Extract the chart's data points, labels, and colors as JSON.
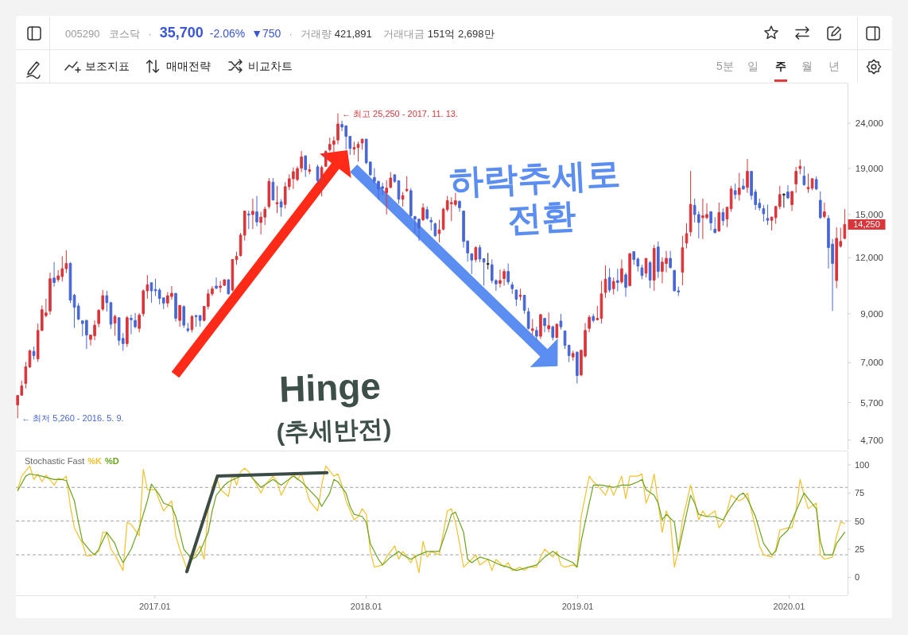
{
  "chart_data": [
    {
      "type": "other",
      "annotations": [
        "005290",
        "코스닥",
        "·",
        "35,700",
        "-2.06%",
        "▼750",
        "·",
        "거래량",
        "421,891",
        "거래대금",
        "151억 2,698만",
        "보조지표",
        "매매전략",
        "비교차트",
        "5분",
        "일",
        "주",
        "월",
        "년"
      ]
    },
    {
      "type": "candlestick",
      "x": [
        "2016-05-09",
        "2016-05-16",
        "2016-05-23",
        "2016-05-30",
        "2016-06-06",
        "2016-06-13",
        "2016-06-20",
        "2016-06-27",
        "2016-07-04",
        "2016-07-11",
        "2016-07-18",
        "2016-07-25",
        "2016-08-01",
        "2016-08-08",
        "2016-08-15",
        "2016-08-22",
        "2016-08-29",
        "2016-09-05",
        "2016-09-12",
        "2016-09-19",
        "2016-09-26",
        "2016-10-03",
        "2016-10-10",
        "2016-10-17",
        "2016-10-24",
        "2016-10-31",
        "2016-11-07",
        "2016-11-14",
        "2016-11-21",
        "2016-11-28",
        "2016-12-05",
        "2016-12-12",
        "2016-12-19",
        "2016-12-26",
        "2017-01-02",
        "2017-01-09",
        "2017-01-16",
        "2017-01-23",
        "2017-01-30",
        "2017-02-06",
        "2017-02-13",
        "2017-02-20",
        "2017-02-27",
        "2017-03-06",
        "2017-03-13",
        "2017-03-20",
        "2017-03-27",
        "2017-04-03",
        "2017-04-10",
        "2017-04-17",
        "2017-04-24",
        "2017-05-01",
        "2017-05-08",
        "2017-05-15",
        "2017-05-22",
        "2017-05-29",
        "2017-06-05",
        "2017-06-12",
        "2017-06-19",
        "2017-06-26",
        "2017-07-03",
        "2017-07-10",
        "2017-07-17",
        "2017-07-24",
        "2017-07-31",
        "2017-08-07",
        "2017-08-14",
        "2017-08-21",
        "2017-08-28",
        "2017-09-04",
        "2017-09-11",
        "2017-09-18",
        "2017-09-25",
        "2017-10-09",
        "2017-10-16",
        "2017-10-23",
        "2017-10-30",
        "2017-11-06",
        "2017-11-13",
        "2017-11-20",
        "2017-11-27",
        "2017-12-04",
        "2017-12-11",
        "2017-12-18",
        "2017-12-25",
        "2018-01-01",
        "2018-01-08",
        "2018-01-15",
        "2018-01-22",
        "2018-01-29",
        "2018-02-05",
        "2018-02-12",
        "2018-02-19",
        "2018-02-26",
        "2018-03-05",
        "2018-03-12",
        "2018-03-19",
        "2018-03-26",
        "2018-04-02",
        "2018-04-09",
        "2018-04-16",
        "2018-04-23",
        "2018-04-30",
        "2018-05-07",
        "2018-05-14",
        "2018-05-21",
        "2018-05-28",
        "2018-06-04",
        "2018-06-11",
        "2018-06-18",
        "2018-06-25",
        "2018-07-02",
        "2018-07-09",
        "2018-07-16",
        "2018-07-23",
        "2018-07-30",
        "2018-08-06",
        "2018-08-13",
        "2018-08-20",
        "2018-08-27",
        "2018-09-03",
        "2018-09-10",
        "2018-09-17",
        "2018-09-24",
        "2018-10-01",
        "2018-10-08",
        "2018-10-15",
        "2018-10-22",
        "2018-10-29",
        "2018-11-05",
        "2018-11-12",
        "2018-11-19",
        "2018-11-26",
        "2018-12-03",
        "2018-12-10",
        "2018-12-17",
        "2018-12-24",
        "2018-12-31",
        "2019-01-07",
        "2019-01-14",
        "2019-01-21",
        "2019-01-28",
        "2019-02-04",
        "2019-02-11",
        "2019-02-18",
        "2019-02-25",
        "2019-03-04",
        "2019-03-11",
        "2019-03-18",
        "2019-03-25",
        "2019-04-01",
        "2019-04-08",
        "2019-04-15",
        "2019-04-22",
        "2019-04-29",
        "2019-05-06",
        "2019-05-13",
        "2019-05-20",
        "2019-05-27",
        "2019-06-03",
        "2019-06-10",
        "2019-06-17",
        "2019-06-24",
        "2019-07-01",
        "2019-07-08",
        "2019-07-15",
        "2019-07-22",
        "2019-07-29",
        "2019-08-05",
        "2019-08-12",
        "2019-08-19",
        "2019-08-26",
        "2019-09-02",
        "2019-09-09",
        "2019-09-16",
        "2019-09-23",
        "2019-09-30",
        "2019-10-07",
        "2019-10-14",
        "2019-10-21",
        "2019-10-28",
        "2019-11-04",
        "2019-11-11",
        "2019-11-18",
        "2019-11-25",
        "2019-12-02",
        "2019-12-09",
        "2019-12-16",
        "2019-12-23",
        "2019-12-30",
        "2020-01-06",
        "2020-01-13",
        "2020-01-20",
        "2020-01-27",
        "2020-02-03",
        "2020-02-10",
        "2020-02-17",
        "2020-02-24",
        "2020-03-02",
        "2020-03-09",
        "2020-03-16",
        "2020-03-23",
        "2020-03-30",
        "2020-04-06"
      ],
      "ohlc": [
        [
          5630,
          5920,
          5260,
          5910
        ],
        [
          5920,
          6380,
          5910,
          6210
        ],
        [
          6290,
          7030,
          6130,
          6850
        ],
        [
          6850,
          7490,
          6810,
          7440
        ],
        [
          7420,
          7610,
          7110,
          7260
        ],
        [
          7140,
          8560,
          7030,
          8260
        ],
        [
          8260,
          9400,
          8240,
          9190
        ],
        [
          8920,
          9730,
          8840,
          9040
        ],
        [
          9130,
          11120,
          8960,
          10780
        ],
        [
          10820,
          11740,
          10350,
          10570
        ],
        [
          10730,
          11270,
          10600,
          10940
        ],
        [
          10900,
          12110,
          10630,
          11350
        ],
        [
          11350,
          12480,
          11100,
          11660
        ],
        [
          11660,
          11740,
          9510,
          9660
        ],
        [
          9900,
          9970,
          8370,
          9310
        ],
        [
          9370,
          9510,
          8700,
          8760
        ],
        [
          8680,
          8680,
          8020,
          8560
        ],
        [
          8700,
          8720,
          7510,
          8070
        ],
        [
          7890,
          8070,
          7650,
          8070
        ],
        [
          8040,
          8700,
          7860,
          8490
        ],
        [
          8560,
          9220,
          8400,
          9160
        ],
        [
          9220,
          10170,
          9130,
          9880
        ],
        [
          9880,
          10130,
          9100,
          9530
        ],
        [
          9530,
          9570,
          8330,
          8530
        ],
        [
          8580,
          8960,
          8040,
          8880
        ],
        [
          8820,
          8820,
          7650,
          7850
        ],
        [
          7930,
          8150,
          7440,
          7720
        ],
        [
          7720,
          8900,
          7590,
          8820
        ],
        [
          8790,
          8960,
          8100,
          8730
        ],
        [
          8700,
          9040,
          8350,
          8420
        ],
        [
          8350,
          9040,
          8180,
          8940
        ],
        [
          9000,
          10200,
          8880,
          10130
        ],
        [
          10130,
          10990,
          9730,
          10450
        ],
        [
          10560,
          10560,
          9530,
          10130
        ],
        [
          10200,
          10780,
          9860,
          10130
        ],
        [
          10170,
          10270,
          9450,
          9740
        ],
        [
          9770,
          9770,
          9220,
          9510
        ],
        [
          9510,
          10070,
          9310,
          9880
        ],
        [
          9840,
          10380,
          9680,
          10000
        ],
        [
          10000,
          10000,
          8650,
          8790
        ],
        [
          8700,
          9400,
          8420,
          9400
        ],
        [
          9340,
          9400,
          8370,
          8490
        ],
        [
          8330,
          8590,
          8180,
          8260
        ],
        [
          8300,
          8940,
          8180,
          8880
        ],
        [
          8920,
          8940,
          8420,
          8870
        ],
        [
          8920,
          8940,
          8420,
          8700
        ],
        [
          8700,
          9370,
          8650,
          9350
        ],
        [
          9350,
          10200,
          9220,
          9970
        ],
        [
          9970,
          10380,
          9860,
          10240
        ],
        [
          10380,
          10850,
          10210,
          10270
        ],
        [
          10300,
          10660,
          10040,
          10380
        ],
        [
          10420,
          10750,
          10380,
          10720
        ],
        [
          10720,
          10750,
          9940,
          9970
        ],
        [
          10170,
          11930,
          10100,
          11900
        ],
        [
          11900,
          12390,
          11580,
          12090
        ],
        [
          12150,
          13640,
          12070,
          13490
        ],
        [
          13490,
          15300,
          13120,
          15270
        ],
        [
          15040,
          15300,
          13910,
          14960
        ],
        [
          15000,
          16280,
          13910,
          15250
        ],
        [
          15210,
          16500,
          14120,
          14440
        ],
        [
          14400,
          15210,
          13540,
          14800
        ],
        [
          14800,
          15630,
          14210,
          15420
        ],
        [
          15630,
          18100,
          15460,
          17790
        ],
        [
          17710,
          18100,
          16110,
          16170
        ],
        [
          15850,
          17380,
          15100,
          15950
        ],
        [
          16010,
          16230,
          14840,
          15590
        ],
        [
          15800,
          17710,
          15460,
          17310
        ],
        [
          17310,
          18450,
          17010,
          18030
        ],
        [
          18030,
          19110,
          17110,
          18700
        ],
        [
          17960,
          19220,
          17790,
          19000
        ],
        [
          19040,
          20800,
          18640,
          20180
        ],
        [
          20290,
          20290,
          18200,
          18890
        ],
        [
          18730,
          19430,
          18450,
          18890
        ],
        [
          19170,
          19380,
          17620,
          17850
        ],
        [
          17850,
          19300,
          16460,
          19100
        ],
        [
          19230,
          20860,
          19170,
          20740
        ],
        [
          20940,
          22270,
          20740,
          21520
        ],
        [
          21520,
          22420,
          20650,
          21910
        ],
        [
          22010,
          25250,
          21520,
          23900
        ],
        [
          23840,
          24320,
          23040,
          23520
        ],
        [
          23680,
          23680,
          20960,
          22420
        ],
        [
          22420,
          22420,
          20380,
          21080
        ],
        [
          21000,
          21820,
          20380,
          21170
        ],
        [
          21170,
          21820,
          19700,
          21520
        ],
        [
          21670,
          22110,
          20940,
          22110
        ],
        [
          22110,
          22110,
          19440,
          19570
        ],
        [
          19650,
          19700,
          18280,
          18400
        ],
        [
          18150,
          19040,
          17590,
          17790
        ],
        [
          17790,
          17850,
          16170,
          17100
        ],
        [
          17310,
          17660,
          16560,
          17150
        ],
        [
          16770,
          17900,
          15000,
          17180
        ],
        [
          17240,
          18650,
          17180,
          18100
        ],
        [
          18400,
          18450,
          17660,
          17790
        ],
        [
          17850,
          17850,
          15850,
          16230
        ],
        [
          16230,
          16840,
          15630,
          16540
        ],
        [
          16960,
          18280,
          16840,
          17080
        ],
        [
          16960,
          17180,
          14800,
          14900
        ],
        [
          14840,
          14900,
          13630,
          14640
        ],
        [
          14640,
          14700,
          13090,
          14010
        ],
        [
          14600,
          15890,
          14500,
          15530
        ],
        [
          15380,
          15630,
          14600,
          14700
        ],
        [
          14560,
          14800,
          13820,
          14440
        ],
        [
          14300,
          14400,
          13360,
          13450
        ],
        [
          13600,
          14600,
          13000,
          13860
        ],
        [
          13910,
          15530,
          13820,
          15420
        ],
        [
          15380,
          16500,
          15210,
          16110
        ],
        [
          15850,
          16390,
          14500,
          15950
        ],
        [
          15800,
          16770,
          15630,
          16110
        ],
        [
          16060,
          16110,
          15210,
          15530
        ],
        [
          15270,
          15270,
          12650,
          13060
        ],
        [
          13090,
          13120,
          11770,
          12310
        ],
        [
          12260,
          12260,
          11040,
          11870
        ],
        [
          11900,
          12740,
          11740,
          12650
        ],
        [
          12650,
          12830,
          11740,
          11930
        ],
        [
          11950,
          11980,
          10410,
          11740
        ],
        [
          11630,
          12310,
          11310,
          11630
        ],
        [
          11580,
          11900,
          10530,
          10680
        ],
        [
          10680,
          10750,
          10130,
          10500
        ],
        [
          10530,
          11300,
          10310,
          10680
        ],
        [
          10790,
          11350,
          10410,
          11190
        ],
        [
          11190,
          11660,
          10450,
          10600
        ],
        [
          10450,
          10600,
          9970,
          10240
        ],
        [
          10170,
          10200,
          9370,
          9700
        ],
        [
          9840,
          10240,
          9640,
          9900
        ],
        [
          9900,
          9900,
          9000,
          9160
        ],
        [
          9100,
          9280,
          8300,
          8350
        ],
        [
          8260,
          8760,
          8070,
          8330
        ],
        [
          8260,
          8420,
          7850,
          8020
        ],
        [
          8020,
          9000,
          7910,
          8960
        ],
        [
          8790,
          8820,
          8180,
          8470
        ],
        [
          8330,
          9060,
          8180,
          8470
        ],
        [
          8420,
          8470,
          7850,
          7970
        ],
        [
          7970,
          8560,
          7930,
          8530
        ],
        [
          8670,
          9000,
          8300,
          8420
        ],
        [
          8240,
          8260,
          7510,
          7650
        ],
        [
          7650,
          7680,
          7020,
          7260
        ],
        [
          7210,
          7440,
          7070,
          7340
        ],
        [
          7390,
          7410,
          6290,
          6550
        ],
        [
          6570,
          7490,
          6530,
          7460
        ],
        [
          7240,
          8580,
          7190,
          8260
        ],
        [
          8350,
          8940,
          8180,
          8840
        ],
        [
          8880,
          9000,
          8610,
          8700
        ],
        [
          8730,
          9370,
          8700,
          8790
        ],
        [
          8790,
          10660,
          8560,
          9970
        ],
        [
          10040,
          11550,
          9770,
          10750
        ],
        [
          10850,
          11380,
          10040,
          10170
        ],
        [
          10240,
          10850,
          9940,
          10630
        ],
        [
          10680,
          11350,
          10100,
          10570
        ],
        [
          10600,
          11900,
          10500,
          11350
        ],
        [
          11000,
          11120,
          9820,
          10310
        ],
        [
          10410,
          12310,
          10350,
          12260
        ],
        [
          12390,
          12420,
          11580,
          11900
        ],
        [
          11930,
          12030,
          11190,
          11500
        ],
        [
          11400,
          11580,
          10750,
          10960
        ],
        [
          11090,
          11970,
          10850,
          11970
        ],
        [
          11710,
          11820,
          10270,
          10700
        ],
        [
          10700,
          12830,
          10130,
          12600
        ],
        [
          12690,
          13060,
          10820,
          11190
        ],
        [
          11190,
          12030,
          10530,
          11740
        ],
        [
          11660,
          12440,
          11150,
          11970
        ],
        [
          11970,
          12440,
          11350,
          11420
        ],
        [
          11240,
          11300,
          10100,
          10130
        ],
        [
          10130,
          10350,
          9860,
          10070
        ],
        [
          11150,
          13440,
          10420,
          12640
        ],
        [
          12950,
          14340,
          12600,
          13600
        ],
        [
          13720,
          18770,
          13420,
          15800
        ],
        [
          15730,
          16280,
          14400,
          15000
        ],
        [
          15000,
          15240,
          13270,
          14400
        ],
        [
          14760,
          16280,
          13220,
          14900
        ],
        [
          14760,
          15890,
          14640,
          15000
        ],
        [
          15210,
          15270,
          13820,
          14360
        ],
        [
          13910,
          14800,
          13600,
          13670
        ],
        [
          13780,
          15950,
          13720,
          15150
        ],
        [
          15150,
          15480,
          14160,
          14540
        ],
        [
          14660,
          15570,
          14060,
          15570
        ],
        [
          15460,
          17380,
          15210,
          17110
        ],
        [
          16960,
          17590,
          16230,
          16620
        ],
        [
          16620,
          18570,
          16110,
          17180
        ],
        [
          17360,
          18030,
          17030,
          17110
        ],
        [
          17240,
          19970,
          16770,
          18730
        ],
        [
          18730,
          18730,
          16170,
          16540
        ],
        [
          16840,
          17080,
          15360,
          15780
        ],
        [
          15890,
          16280,
          15300,
          15530
        ],
        [
          15460,
          15740,
          14460,
          15060
        ],
        [
          14700,
          15790,
          14210,
          14560
        ],
        [
          14560,
          14840,
          13820,
          14800
        ],
        [
          14760,
          15670,
          14300,
          15630
        ],
        [
          15630,
          17380,
          15420,
          16620
        ],
        [
          16620,
          16730,
          15530,
          16620
        ],
        [
          16840,
          17430,
          16230,
          16340
        ],
        [
          15780,
          16890,
          15270,
          16890
        ],
        [
          17550,
          19170,
          16770,
          18730
        ],
        [
          19000,
          19910,
          18450,
          19220
        ],
        [
          18280,
          19220,
          17380,
          17490
        ],
        [
          17130,
          18510,
          16770,
          17240
        ],
        [
          17180,
          18100,
          17010,
          18030
        ],
        [
          17960,
          18250,
          17010,
          17110
        ],
        [
          16140,
          16890,
          14660,
          14760
        ],
        [
          14840,
          15950,
          14700,
          15210
        ],
        [
          14700,
          14960,
          11360,
          12650
        ],
        [
          12880,
          13230,
          9130,
          11660
        ],
        [
          10680,
          14050,
          10270,
          13270
        ],
        [
          12740,
          14010,
          12650,
          13060
        ],
        [
          13270,
          15420,
          13200,
          14250
        ]
      ],
      "xlim": [
        "2016-05-06",
        "2020-04-11"
      ],
      "ylim": [
        4470,
        29440
      ],
      "log": true,
      "yticks": [
        {
          "value": 4700,
          "label": "4,700"
        },
        {
          "value": 5700,
          "label": "5,700"
        },
        {
          "value": 7000,
          "label": "7,000"
        },
        {
          "value": 9000,
          "label": "9,000"
        },
        {
          "value": 12000,
          "label": "12,000"
        },
        {
          "value": 15000,
          "label": "15,000"
        },
        {
          "value": 19000,
          "label": "19,000"
        },
        {
          "value": 24000,
          "label": "24,000"
        }
      ],
      "tick_labels": "y",
      "annotations": [
        {
          "text": "← 최고 25,250 - 2017. 11. 13.",
          "x": "2017-11-13",
          "y": 25250
        },
        {
          "text": "← 최저 5,260 - 2016. 5. 9.",
          "x": "2016-05-09",
          "y": 5260
        },
        "14,250",
        "하락추세로 전환",
        "Hinge",
        "(추세반전)"
      ]
    },
    {
      "type": "line",
      "title": "Stochastic Fast",
      "legend": "top left",
      "series": [
        {
          "name": "%K",
          "color": "#f2c12e",
          "x": [
            "2016-05-09",
            "2016-05-16",
            "2016-05-30",
            "2016-06-06",
            "2016-06-13",
            "2016-06-20",
            "2016-06-27",
            "2016-07-11",
            "2016-07-18",
            "2016-07-25",
            "2016-08-01",
            "2016-08-08",
            "2016-08-15",
            "2016-08-29",
            "2016-09-05",
            "2016-09-12",
            "2016-09-26",
            "2016-10-03",
            "2016-10-10",
            "2016-10-17",
            "2016-10-24",
            "2016-11-07",
            "2016-11-14",
            "2016-11-21",
            "2016-12-05",
            "2016-12-12",
            "2016-12-19",
            "2017-01-02",
            "2017-01-09",
            "2017-01-16",
            "2017-01-30",
            "2017-02-06",
            "2017-02-13",
            "2017-02-27",
            "2017-03-06",
            "2017-03-20",
            "2017-03-27",
            "2017-04-03",
            "2017-04-10",
            "2017-04-17",
            "2017-04-24",
            "2017-05-08",
            "2017-05-15",
            "2017-05-22",
            "2017-05-29",
            "2017-06-05",
            "2017-06-12",
            "2017-06-26",
            "2017-07-03",
            "2017-07-10",
            "2017-07-24",
            "2017-07-31",
            "2017-08-07",
            "2017-08-21",
            "2017-08-28",
            "2017-09-04",
            "2017-09-11",
            "2017-09-25",
            "2017-10-09",
            "2017-10-16",
            "2017-10-23",
            "2017-11-06",
            "2017-11-13",
            "2017-11-20",
            "2017-11-27",
            "2017-12-11",
            "2017-12-18",
            "2017-12-25",
            "2018-01-01",
            "2018-01-08",
            "2018-01-15",
            "2018-01-29",
            "2018-02-05",
            "2018-02-19",
            "2018-02-26",
            "2018-03-05",
            "2018-03-19",
            "2018-03-26",
            "2018-04-02",
            "2018-04-09",
            "2018-04-16",
            "2018-04-23",
            "2018-05-07",
            "2018-05-21",
            "2018-05-28",
            "2018-06-04",
            "2018-06-11",
            "2018-06-18",
            "2018-07-02",
            "2018-07-09",
            "2018-07-16",
            "2018-07-30",
            "2018-08-06",
            "2018-08-13",
            "2018-08-27",
            "2018-09-03",
            "2018-09-10",
            "2018-09-24",
            "2018-10-01",
            "2018-10-08",
            "2018-10-22",
            "2018-10-29",
            "2018-11-05",
            "2018-11-19",
            "2018-11-26",
            "2018-12-03",
            "2018-12-10",
            "2018-12-24",
            "2018-12-31",
            "2019-01-07",
            "2019-01-21",
            "2019-01-28",
            "2019-02-04",
            "2019-02-18",
            "2019-02-25",
            "2019-03-04",
            "2019-03-18",
            "2019-03-25",
            "2019-04-01",
            "2019-04-15",
            "2019-04-22",
            "2019-04-29",
            "2019-05-06",
            "2019-05-13",
            "2019-05-27",
            "2019-06-03",
            "2019-06-10",
            "2019-06-17",
            "2019-06-24",
            "2019-07-01",
            "2019-07-15",
            "2019-07-22",
            "2019-07-29",
            "2019-08-05",
            "2019-08-12",
            "2019-08-26",
            "2019-09-02",
            "2019-09-09",
            "2019-09-16",
            "2019-09-23",
            "2019-10-07",
            "2019-10-14",
            "2019-10-21",
            "2019-11-04",
            "2019-11-11",
            "2019-11-18",
            "2019-12-02",
            "2019-12-09",
            "2019-12-16",
            "2019-12-30",
            "2020-01-06",
            "2020-01-13",
            "2020-01-20",
            "2020-01-27",
            "2020-02-03",
            "2020-02-17",
            "2020-02-24",
            "2020-03-02",
            "2020-03-16",
            "2020-03-23",
            "2020-03-30",
            "2020-04-06"
          ],
          "values": [
            78,
            90,
            99,
            87,
            92,
            85,
            91,
            82,
            88,
            87,
            90,
            63,
            44,
            30,
            19,
            19,
            23,
            40,
            40,
            25,
            20,
            6,
            49,
            47,
            37,
            96,
            78,
            78,
            68,
            59,
            68,
            37,
            25,
            5,
            16,
            28,
            16,
            59,
            80,
            90,
            78,
            72,
            92,
            82,
            94,
            97,
            94,
            82,
            75,
            82,
            90,
            85,
            73,
            87,
            92,
            87,
            92,
            68,
            59,
            82,
            99,
            90,
            92,
            82,
            68,
            51,
            54,
            61,
            56,
            23,
            9,
            11,
            18,
            28,
            16,
            23,
            13,
            20,
            4,
            32,
            18,
            23,
            20,
            59,
            61,
            49,
            30,
            9,
            16,
            20,
            11,
            16,
            6,
            16,
            9,
            13,
            6,
            9,
            6,
            9,
            9,
            18,
            25,
            18,
            23,
            11,
            9,
            11,
            9,
            54,
            90,
            85,
            82,
            73,
            82,
            73,
            90,
            70,
            90,
            90,
            92,
            66,
            75,
            92,
            40,
            59,
            51,
            9,
            25,
            51,
            82,
            68,
            51,
            59,
            54,
            59,
            44,
            49,
            59,
            73,
            68,
            70,
            75,
            44,
            28,
            20,
            18,
            25,
            42,
            44,
            44,
            59,
            87,
            73,
            61,
            66,
            20,
            16,
            18,
            37,
            49,
            48
          ]
        },
        {
          "name": "%D",
          "color": "#6aa31f",
          "x": [
            "2016-05-09",
            "2016-05-23",
            "2016-05-30",
            "2016-06-20",
            "2016-07-11",
            "2016-07-25",
            "2016-08-01",
            "2016-08-15",
            "2016-08-22",
            "2016-08-29",
            "2016-09-12",
            "2016-09-19",
            "2016-09-26",
            "2016-10-10",
            "2016-10-24",
            "2016-10-31",
            "2016-11-07",
            "2016-11-21",
            "2016-12-05",
            "2016-12-19",
            "2016-12-26",
            "2017-01-09",
            "2017-01-16",
            "2017-01-30",
            "2017-02-06",
            "2017-02-13",
            "2017-02-20",
            "2017-03-06",
            "2017-03-13",
            "2017-03-20",
            "2017-04-03",
            "2017-04-10",
            "2017-04-17",
            "2017-05-01",
            "2017-05-08",
            "2017-05-29",
            "2017-06-12",
            "2017-07-03",
            "2017-07-24",
            "2017-08-07",
            "2017-08-28",
            "2017-09-11",
            "2017-10-09",
            "2017-10-16",
            "2017-10-30",
            "2017-11-06",
            "2017-11-13",
            "2017-11-27",
            "2017-12-04",
            "2017-12-11",
            "2017-12-25",
            "2018-01-01",
            "2018-01-08",
            "2018-01-22",
            "2018-01-29",
            "2018-02-12",
            "2018-02-26",
            "2018-03-05",
            "2018-03-19",
            "2018-04-02",
            "2018-04-16",
            "2018-05-07",
            "2018-05-21",
            "2018-05-28",
            "2018-06-04",
            "2018-06-18",
            "2018-06-25",
            "2018-07-02",
            "2018-07-16",
            "2018-07-30",
            "2018-08-20",
            "2018-09-03",
            "2018-09-17",
            "2018-10-08",
            "2018-10-22",
            "2018-11-05",
            "2018-11-19",
            "2018-12-03",
            "2018-12-24",
            "2018-12-31",
            "2019-01-07",
            "2019-01-21",
            "2019-01-28",
            "2019-02-11",
            "2019-03-04",
            "2019-03-18",
            "2019-04-01",
            "2019-04-15",
            "2019-04-22",
            "2019-04-29",
            "2019-05-13",
            "2019-05-20",
            "2019-05-27",
            "2019-06-03",
            "2019-06-17",
            "2019-06-24",
            "2019-07-01",
            "2019-07-15",
            "2019-07-22",
            "2019-07-29",
            "2019-08-12",
            "2019-08-26",
            "2019-09-09",
            "2019-09-23",
            "2019-10-07",
            "2019-10-14",
            "2019-10-21",
            "2019-11-04",
            "2019-11-18",
            "2019-12-02",
            "2019-12-09",
            "2019-12-16",
            "2019-12-30",
            "2020-01-13",
            "2020-01-27",
            "2020-02-03",
            "2020-02-17",
            "2020-02-24",
            "2020-03-02",
            "2020-03-16",
            "2020-03-23",
            "2020-04-06"
          ],
          "values": [
            77,
            90,
            92,
            90,
            87,
            87,
            86,
            68,
            49,
            32,
            23,
            20,
            25,
            40,
            30,
            20,
            13,
            25,
            44,
            68,
            83,
            73,
            66,
            63,
            54,
            40,
            25,
            16,
            18,
            23,
            40,
            59,
            73,
            82,
            85,
            90,
            92,
            80,
            87,
            82,
            90,
            85,
            70,
            63,
            75,
            87,
            85,
            75,
            63,
            56,
            54,
            49,
            30,
            16,
            11,
            18,
            23,
            20,
            16,
            20,
            23,
            23,
            44,
            56,
            58,
            40,
            16,
            13,
            18,
            16,
            11,
            9,
            6,
            9,
            11,
            18,
            23,
            18,
            13,
            9,
            32,
            66,
            82,
            82,
            80,
            82,
            82,
            85,
            87,
            78,
            73,
            66,
            51,
            56,
            49,
            23,
            40,
            73,
            66,
            56,
            54,
            54,
            51,
            63,
            73,
            75,
            70,
            54,
            30,
            20,
            23,
            35,
            42,
            59,
            75,
            70,
            61,
            32,
            20,
            20,
            30,
            40
          ]
        },
        {
          "color": "#3b4b45",
          "x": [
            "2017-02-25",
            "2017-04-19",
            "2017-10-25"
          ],
          "values": [
            5,
            90,
            93
          ]
        }
      ],
      "xlim": [
        "2016-05-06",
        "2020-04-11"
      ],
      "xticks": [
        {
          "value": "2017-01-01",
          "label": "2017.01"
        },
        {
          "value": "2018-01-01",
          "label": "2018.01"
        },
        {
          "value": "2019-01-01",
          "label": "2019.01"
        },
        {
          "value": "2020-01-01",
          "label": "2020.01"
        }
      ],
      "ylim": [
        -16,
        112
      ],
      "yticks": [
        0,
        25,
        50,
        75,
        100
      ],
      "ref_lines": [
        {
          "axis": "y",
          "value": 80,
          "color": "#a0a0a0",
          "line_style": "dashed"
        },
        {
          "axis": "y",
          "value": 50,
          "color": "#a0a0a0",
          "line_style": "dashed"
        },
        {
          "axis": "y",
          "value": 20,
          "color": "#a0a0a0",
          "line_style": "dashed"
        }
      ]
    }
  ]
}
